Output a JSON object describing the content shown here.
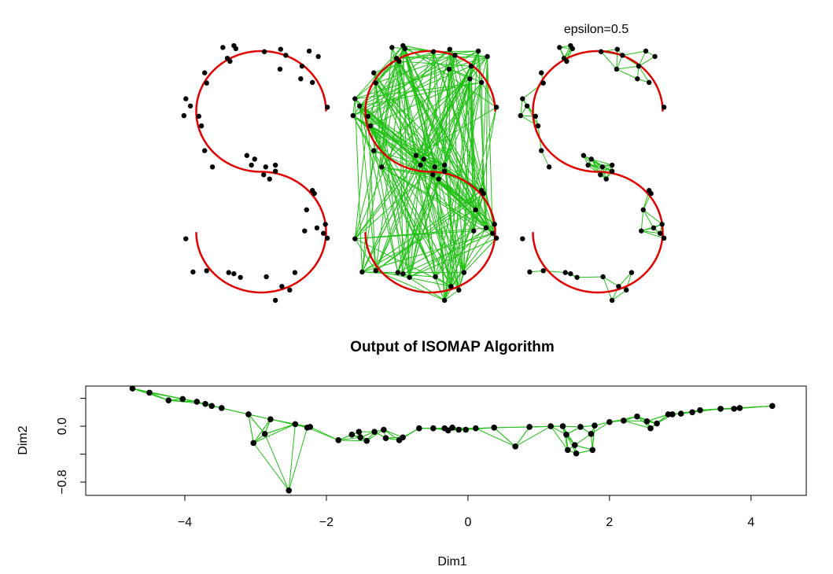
{
  "chart_data": [
    {
      "type": "graph",
      "annotation": "epsilon=0.5",
      "xlim": [
        -1.1,
        1.1
      ],
      "ylim": [
        -2.2,
        2.2
      ],
      "x": [
        -0.59,
        -0.42,
        -0.52,
        -0.39,
        -0.48,
        0.05,
        0.3,
        0.29,
        0.38,
        0.63,
        0.74,
        0.88,
        0.79,
        0.61,
        -0.87,
        -0.84,
        -1.16,
        -1.09,
        -1.19,
        -0.96,
        -0.92,
        -0.87,
        -0.75,
        -0.22,
        -0.15,
        -0.1,
        0.07,
        0.22,
        0.22,
        0.04,
        0.79,
        0.82,
        0.7,
        0.86,
        0.67,
        0.99,
        1.02,
        0.96,
        -1.16,
        -1.05,
        -0.84,
        -0.5,
        -0.42,
        -0.32,
        0.08,
        0.22,
        0.32,
        0.44,
        0.52,
        1.02,
        0.13
      ],
      "y": [
        2.06,
        2.09,
        1.88,
        2.04,
        1.83,
        1.99,
        2.03,
        1.7,
        1.93,
        1.75,
        2.0,
        1.91,
        1.48,
        1.54,
        1.64,
        1.47,
        1.21,
        1.09,
        0.93,
        0.92,
        0.76,
        0.35,
        0.08,
        0.27,
        0.11,
        0.21,
        0.08,
        0.11,
        0.01,
        -0.05,
        -0.31,
        -0.36,
        -0.63,
        -0.93,
        -0.98,
        -0.87,
        -1.1,
        -1.02,
        -1.11,
        -1.66,
        -1.64,
        -1.67,
        -1.69,
        -1.75,
        -1.74,
        -2.13,
        -1.9,
        -1.96,
        -1.67,
        1.07,
        -0.12
      ]
    },
    {
      "type": "scatter",
      "title": "Output of ISOMAP Algorithm",
      "x_label": "Dim1",
      "y_label": "Dim2",
      "xlim": [
        -5.4,
        4.78
      ],
      "ylim": [
        -0.99,
        0.575
      ],
      "xticks": [
        {
          "value": -4,
          "label": "−4"
        },
        {
          "value": -2,
          "label": "−2"
        },
        0,
        2,
        4
      ],
      "yticks": [
        {
          "value": -0.8,
          "label": "−0.8"
        },
        {
          "value": -0.4,
          "label": null
        },
        {
          "value": 0,
          "label": "0.0"
        },
        {
          "value": 0.4,
          "label": null
        }
      ],
      "x": [
        -4.74,
        -4.5,
        -4.23,
        -4.03,
        -3.83,
        -3.71,
        -3.62,
        -3.48,
        -3.1,
        -2.79,
        -2.87,
        -3.03,
        -2.53,
        -2.44,
        -2.27,
        -2.23,
        -1.83,
        -1.64,
        -1.54,
        -1.52,
        -1.43,
        -1.32,
        -1.19,
        -1.16,
        -0.97,
        -0.92,
        -0.69,
        -0.49,
        -0.33,
        -0.28,
        -0.22,
        -0.13,
        -0.03,
        0.11,
        0.37,
        0.67,
        0.87,
        1.17,
        1.34,
        1.39,
        1.41,
        1.51,
        1.53,
        1.59,
        1.76,
        1.74,
        1.79,
        2.0,
        2.2,
        2.39,
        2.53,
        2.58,
        2.67,
        2.83,
        2.89,
        3.01,
        3.17,
        3.28,
        3.57,
        3.76,
        3.84,
        4.3
      ],
      "y": [
        0.54,
        0.48,
        0.37,
        0.39,
        0.35,
        0.32,
        0.29,
        0.26,
        0.17,
        0.1,
        -0.11,
        -0.24,
        -0.92,
        0.03,
        -0.02,
        -0.01,
        -0.2,
        -0.12,
        -0.08,
        -0.16,
        -0.21,
        -0.08,
        -0.05,
        -0.17,
        -0.2,
        -0.16,
        -0.03,
        -0.03,
        -0.03,
        -0.06,
        -0.02,
        -0.05,
        -0.05,
        -0.03,
        -0.02,
        -0.29,
        -0.01,
        0.0,
        0.0,
        -0.12,
        -0.34,
        -0.27,
        -0.39,
        -0.01,
        -0.34,
        -0.11,
        0.01,
        0.06,
        0.08,
        0.14,
        0.07,
        -0.03,
        0.04,
        0.17,
        0.17,
        0.18,
        0.2,
        0.23,
        0.25,
        0.25,
        0.26,
        0.29
      ]
    }
  ]
}
